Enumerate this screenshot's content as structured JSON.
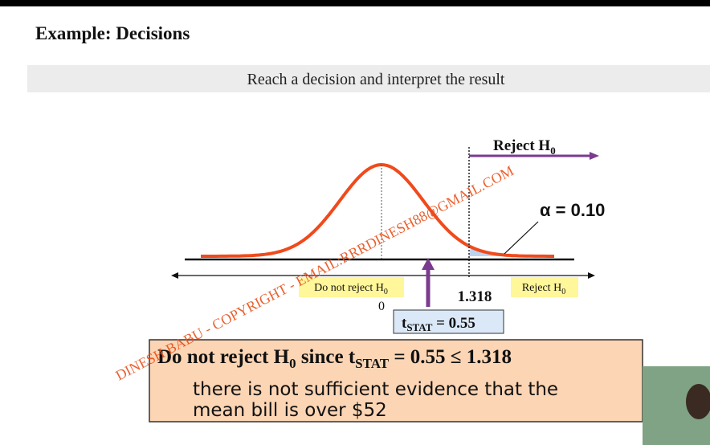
{
  "header": {
    "title": "Example: Decisions",
    "subtitle": "Reach a decision and interpret the result"
  },
  "diagram": {
    "reject_arrow_label": {
      "main": "Reject H",
      "sub": "0"
    },
    "alpha_label": "α = 0.10",
    "region_left": {
      "main": "Do not reject H",
      "sub": "0"
    },
    "region_right": {
      "main": "Reject H",
      "sub": "0"
    },
    "critical_value": "1.318",
    "center_value": "0",
    "t_stat": {
      "main": "t",
      "sub": "STAT",
      "rest": " = 0.55"
    }
  },
  "conclusion": {
    "headline": {
      "part1": "Do not reject H",
      "sub1": "0",
      "part2": " since t",
      "sub2": "STAT",
      "part3": " = 0.55 ≤ 1.318"
    },
    "lines": [
      "there is not sufficient evidence that the",
      "mean bill is over $52"
    ]
  },
  "watermark": "DINESH BABU - COPYRIGHT - EMAIL:RRRDINESH88@GMAIL.COM"
}
